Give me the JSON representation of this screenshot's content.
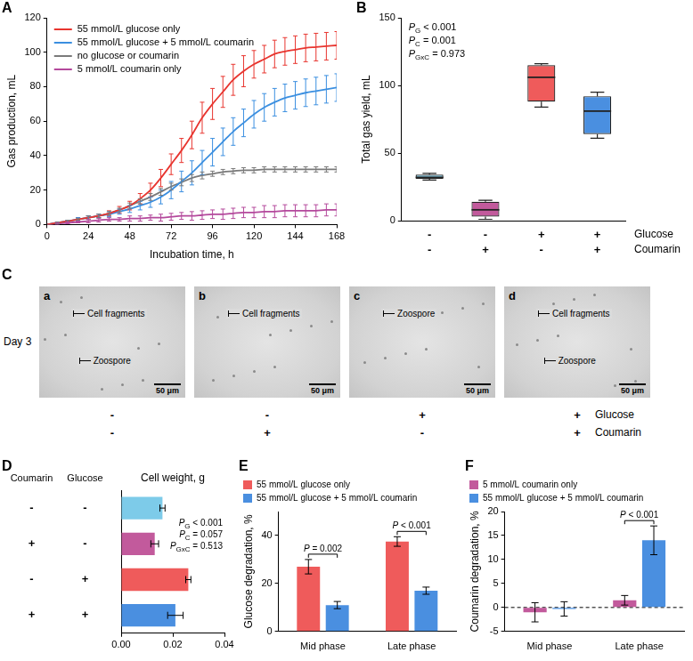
{
  "chart_data": [
    {
      "panel": "A",
      "type": "line",
      "x_label": "Incubation time, h",
      "y_label": "Gas production, mL",
      "xlim": [
        0,
        168
      ],
      "xticks": [
        0,
        24,
        48,
        72,
        96,
        120,
        144,
        168
      ],
      "ylim": [
        0,
        120
      ],
      "yticks": [
        0,
        20,
        40,
        60,
        80,
        100,
        120
      ],
      "grid": false,
      "legend": "upper left",
      "x": [
        0,
        6,
        12,
        18,
        24,
        30,
        36,
        42,
        48,
        54,
        60,
        66,
        72,
        78,
        84,
        90,
        96,
        102,
        108,
        114,
        120,
        126,
        132,
        138,
        144,
        150,
        156,
        162,
        168
      ],
      "series": [
        {
          "name": "55 mmol/L glucose only",
          "color": "#e8352f",
          "values": [
            0,
            1,
            2,
            3,
            4,
            5,
            6.5,
            8.5,
            11,
            15,
            20,
            27,
            35,
            43,
            52,
            62,
            70,
            77,
            84,
            89,
            93,
            96,
            99,
            100.5,
            101.5,
            102.5,
            103,
            103.5,
            104
          ],
          "errors": [
            0,
            0.5,
            0.5,
            1,
            1,
            1,
            1.5,
            2,
            2.5,
            3,
            4,
            5,
            6,
            7,
            8,
            9,
            9,
            9,
            9,
            9,
            8,
            8,
            8,
            8,
            8,
            8,
            8,
            8,
            8
          ]
        },
        {
          "name": "55 mmol/L glucose + 5 mmol/L coumarin",
          "color": "#3b8fe0",
          "values": [
            0,
            1,
            2,
            3,
            4,
            5,
            6,
            7.5,
            9,
            11,
            13,
            16,
            20,
            25,
            30,
            36,
            42,
            48,
            54,
            59,
            64,
            68,
            71,
            73.5,
            75,
            76.5,
            77.5,
            78.5,
            79.5
          ],
          "errors": [
            0,
            0.5,
            0.5,
            1,
            1,
            1,
            1.5,
            1.5,
            2,
            2.5,
            3,
            4,
            5,
            6,
            7,
            7,
            8,
            8,
            8,
            8,
            8,
            8,
            8,
            8,
            8,
            8,
            8,
            8,
            8
          ]
        },
        {
          "name": "no glucose or coumarin",
          "color": "#7a7a7a",
          "values": [
            0,
            1,
            2,
            3,
            4,
            5,
            6.5,
            8.5,
            11,
            13.5,
            16,
            19,
            22,
            24.5,
            27,
            28.5,
            29.5,
            30.5,
            31,
            31.5,
            31.5,
            32,
            32,
            32,
            32,
            32,
            32,
            32,
            32
          ],
          "errors": [
            0,
            0.5,
            0.5,
            0.5,
            1,
            1,
            1,
            1,
            1.5,
            1.5,
            2,
            2,
            2,
            2,
            2,
            2,
            1.5,
            1.5,
            1.5,
            1.5,
            1.5,
            1.5,
            1.5,
            1.5,
            1.5,
            1.5,
            1.5,
            1.5,
            1.5
          ]
        },
        {
          "name": "5 mmol/L coumarin only",
          "color": "#b4499c",
          "values": [
            0,
            0.5,
            1,
            1.5,
            2,
            2.5,
            3,
            3,
            3.5,
            3.5,
            4,
            4,
            4.5,
            5,
            5,
            5.5,
            6,
            6,
            6.5,
            7,
            7,
            7.5,
            7.5,
            8,
            8,
            8,
            8,
            8.5,
            8.5
          ],
          "errors": [
            0,
            0.5,
            0.5,
            0.5,
            1,
            1,
            1,
            1,
            1.5,
            1.5,
            1.5,
            2,
            2,
            2,
            2.5,
            2.5,
            2.5,
            3,
            3,
            3,
            3,
            3.5,
            3.5,
            3.5,
            3.5,
            3.5,
            3.5,
            3.5,
            3.5
          ]
        }
      ]
    },
    {
      "panel": "B",
      "type": "box",
      "y_label": "Total gas yield, mL",
      "ylim": [
        0,
        150
      ],
      "yticks": [
        0,
        50,
        100,
        150
      ],
      "grid": false,
      "tick_labels": "y",
      "rows": [
        {
          "label": "Glucose",
          "values": [
            "-",
            "-",
            "+",
            "+"
          ]
        },
        {
          "label": "Coumarin",
          "values": [
            "-",
            "+",
            "-",
            "+"
          ]
        }
      ],
      "boxes": [
        {
          "min": 30,
          "q1": 31,
          "median": 32,
          "q3": 34,
          "max": 35,
          "color": "#7dcbe9"
        },
        {
          "min": 1,
          "q1": 3,
          "median": 8,
          "q3": 14,
          "max": 15,
          "color": "#c25a9c"
        },
        {
          "min": 84,
          "q1": 88,
          "median": 106,
          "q3": 115,
          "max": 116,
          "color": "#ef5b5b"
        },
        {
          "min": 61,
          "q1": 64,
          "median": 81,
          "q3": 92,
          "max": 95,
          "color": "#4a8fe0"
        }
      ],
      "stats": [
        {
          "label": "P",
          "sub": "G",
          "op": "<",
          "value": 0.001
        },
        {
          "label": "P",
          "sub": "C",
          "op": "=",
          "value": 0.001
        },
        {
          "label": "P",
          "sub": "GxC",
          "op": "=",
          "value": 0.973
        }
      ]
    },
    {
      "panel": "C",
      "type": "image_grid",
      "label": "Day 3",
      "scale_bar": "50 μm",
      "images": [
        {
          "letter": "a",
          "annotations": [
            "Cell fragments",
            "Zoospore"
          ]
        },
        {
          "letter": "b",
          "annotations": [
            "Cell fragments"
          ]
        },
        {
          "letter": "c",
          "annotations": [
            "Zoospore"
          ]
        },
        {
          "letter": "d",
          "annotations": [
            "Cell fragments",
            "Zoospore"
          ]
        }
      ],
      "rows": [
        {
          "label": "Glucose",
          "values": [
            "-",
            "-",
            "+",
            "+"
          ]
        },
        {
          "label": "Coumarin",
          "values": [
            "-",
            "+",
            "-",
            "+"
          ]
        }
      ]
    },
    {
      "panel": "D",
      "type": "bar",
      "orientation": "horizontal",
      "title": "Cell weight, g",
      "xlim": [
        0,
        0.04
      ],
      "xticks": [
        {
          "value": 0,
          "label": "0.00"
        },
        {
          "value": 0.02,
          "label": "0.02"
        },
        {
          "value": 0.04,
          "label": "0.04"
        }
      ],
      "grid": false,
      "tick_labels": "x",
      "columns": [
        {
          "label": "Coumarin",
          "values": [
            "-",
            "+",
            "-",
            "+"
          ]
        },
        {
          "label": "Glucose",
          "values": [
            "-",
            "-",
            "+",
            "+"
          ]
        }
      ],
      "values": [
        0.016,
        0.013,
        0.026,
        0.021
      ],
      "errors": [
        0.001,
        0.0015,
        0.001,
        0.003
      ],
      "colors": [
        "#7dcbe9",
        "#c25a9c",
        "#ef5b5b",
        "#4a8fe0"
      ],
      "stats": [
        {
          "label": "P",
          "sub": "G",
          "op": "<",
          "value": 0.001
        },
        {
          "label": "P",
          "sub": "C",
          "op": "=",
          "value": 0.057
        },
        {
          "label": "P",
          "sub": "GxC",
          "op": "=",
          "value": 0.513
        }
      ]
    },
    {
      "panel": "E",
      "type": "bar",
      "categories": [
        "Mid phase",
        "Late phase"
      ],
      "y_label": "Glucose degradation, %",
      "ylim": [
        0,
        50
      ],
      "yticks": [
        0,
        20,
        40
      ],
      "grid": false,
      "legend": "top",
      "series": [
        {
          "name": "55 mmol/L glucose only",
          "color": "#ef5b5b",
          "values": [
            27,
            37.5
          ],
          "errors": [
            3,
            2
          ]
        },
        {
          "name": "55 mmol/L glucose + 5 mmol/L coumarin",
          "color": "#4a8fe0",
          "values": [
            11,
            17
          ],
          "errors": [
            1.5,
            1.5
          ]
        }
      ],
      "comparisons": [
        {
          "category": "Mid phase",
          "label": "P",
          "op": "=",
          "value": 0.002
        },
        {
          "category": "Late phase",
          "label": "P",
          "op": "<",
          "value": 0.001
        }
      ]
    },
    {
      "panel": "F",
      "type": "bar",
      "categories": [
        "Mid phase",
        "Late phase"
      ],
      "y_label": "Coumarin degradation, %",
      "ylim": [
        -5,
        20
      ],
      "yticks": [
        -5,
        0,
        5,
        10,
        15,
        20
      ],
      "grid": false,
      "legend": "top",
      "series": [
        {
          "name": "5 mmol/L coumarin only",
          "color": "#c25a9c",
          "values": [
            -1,
            1.5
          ],
          "errors": [
            2,
            1
          ]
        },
        {
          "name": "55 mmol/L glucose + 5 mmol/L coumarin",
          "color": "#4a8fe0",
          "values": [
            -0.3,
            14
          ],
          "errors": [
            1.5,
            3
          ]
        }
      ],
      "comparisons": [
        {
          "category": "Late phase",
          "label": "P",
          "op": "<",
          "value": 0.001
        }
      ]
    }
  ]
}
